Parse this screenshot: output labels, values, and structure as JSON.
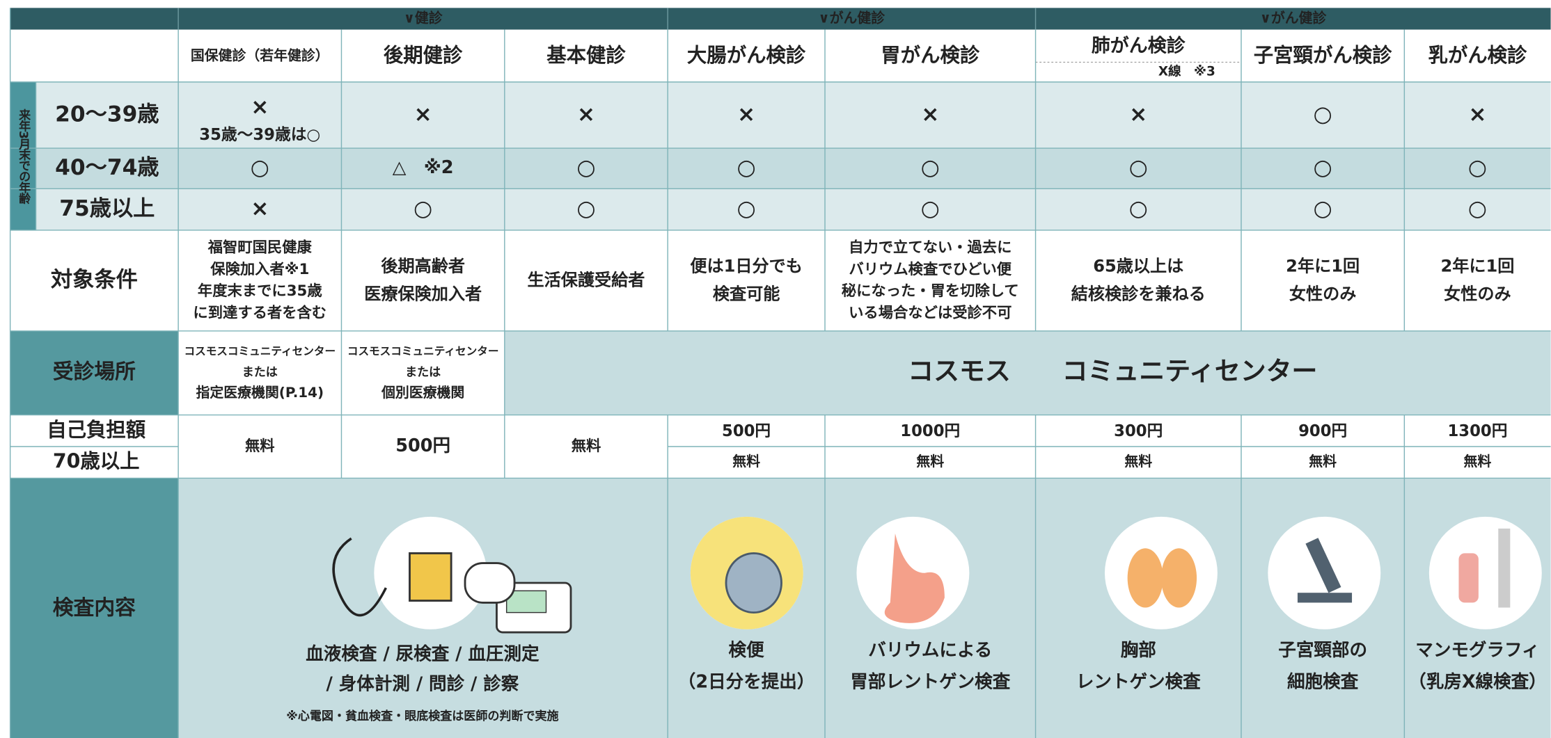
{
  "header_groups": [
    "∨健診",
    "∨がん健診",
    "∨がん健診"
  ],
  "columns": [
    "国保健診（若年健診）",
    "後期健診",
    "基本健診",
    "大腸がん検診",
    "胃がん検診",
    "肺がん検診",
    "子宮頸がん検診",
    "乳がん検診"
  ],
  "column_note": "X線　※3",
  "age_side_label": "来年3月末での年齢",
  "age_rows": [
    {
      "label": "20～39歳",
      "cells": [
        [
          "×",
          "35歳～39歳は○"
        ],
        [
          "×"
        ],
        [
          "×"
        ],
        [
          "×"
        ],
        [
          "×"
        ],
        [
          "×"
        ],
        [
          "○"
        ],
        [
          "×"
        ]
      ]
    },
    {
      "label": "40～74歳",
      "cells": [
        [
          "○"
        ],
        [
          "△　※2"
        ],
        [
          "○"
        ],
        [
          "○"
        ],
        [
          "○"
        ],
        [
          "○"
        ],
        [
          "○"
        ],
        [
          "○"
        ]
      ]
    },
    {
      "label": "75歳以上",
      "cells": [
        [
          "×"
        ],
        [
          "○"
        ],
        [
          "○"
        ],
        [
          "○"
        ],
        [
          "○"
        ],
        [
          "○"
        ],
        [
          "○"
        ],
        [
          "○"
        ]
      ]
    }
  ],
  "conditions": {
    "label": "対象条件",
    "cells": [
      [
        "福智町国民健康",
        "保険加入者※1",
        "年度末までに35歳",
        "に到達する者を含む"
      ],
      [
        "後期高齢者",
        "医療保険加入者"
      ],
      [
        "生活保護受給者"
      ],
      [
        "便は1日分でも",
        "検査可能"
      ],
      [
        "自力で立てない・過去に",
        "バリウム検査でひどい便",
        "秘になった・胃を切除して",
        "いる場合などは受診不可"
      ],
      [
        "65歳以上は",
        "結核検診を兼ねる"
      ],
      [
        "2年に1回",
        "女性のみ"
      ],
      [
        "2年に1回",
        "女性のみ"
      ]
    ]
  },
  "venue": {
    "label": "受診場所",
    "cells": [
      [
        "コスモスコミュニティセンター",
        "または",
        "指定医療機関(P.14)"
      ],
      [
        "コスモスコミュニティセンター",
        "または",
        "個別医療機関"
      ]
    ],
    "merged": "コスモス　　コミュニティセンター"
  },
  "fees": {
    "label": "自己負担額",
    "senior_label": "70歳以上",
    "shared": [
      "無料",
      "500円",
      "無料"
    ],
    "fees": [
      "500円",
      "1000円",
      "300円",
      "900円",
      "1300円"
    ],
    "senior_fees": [
      "無料",
      "無料",
      "無料",
      "無料",
      "無料"
    ]
  },
  "exams": {
    "label": "検査内容",
    "basic": [
      "血液検査 / 尿検査 / 血圧測定",
      "/ 身体計測 / 問診 / 診察"
    ],
    "basic_note": "※心電図・貧血検査・眼底検査は医師の判断で実施",
    "items": [
      [
        "検便",
        "（2日分を提出）"
      ],
      [
        "バリウムによる",
        "胃部レントゲン検査"
      ],
      [
        "胸部",
        "レントゲン検査"
      ],
      [
        "子宮頸部の",
        "細胞検査"
      ],
      [
        "マンモグラフィ",
        "（乳房X線検査）"
      ]
    ]
  }
}
